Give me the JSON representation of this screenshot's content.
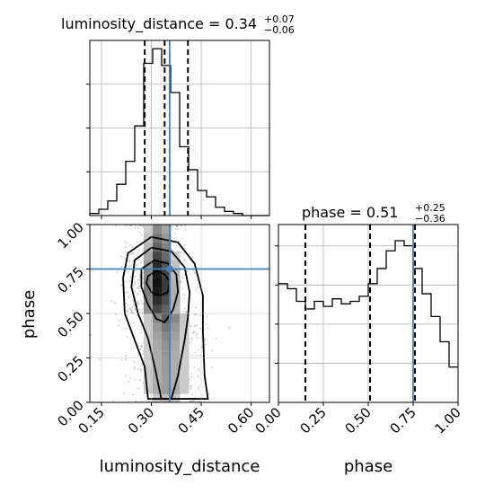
{
  "chart_data": {
    "type": "corner",
    "parameters": [
      "luminosity_distance",
      "phase"
    ],
    "truths": {
      "luminosity_distance": 0.355,
      "phase": 0.75
    },
    "titles": [
      {
        "param": "luminosity_distance",
        "base": "luminosity_distance = 0.34",
        "plus": "+0.07",
        "minus": "−0.06"
      },
      {
        "param": "phase",
        "base": "phase = 0.51",
        "plus": "+0.25",
        "minus": "−0.36"
      }
    ],
    "axes": {
      "luminosity_distance": {
        "label": "luminosity_distance",
        "range": [
          0.115,
          0.655
        ],
        "ticks": [
          0.15,
          0.3,
          0.45,
          0.6
        ],
        "tick_labels": [
          "0.15",
          "0.30",
          "0.45",
          "0.60"
        ]
      },
      "phase": {
        "label": "phase",
        "range": [
          0.0,
          1.0
        ],
        "ticks": [
          0.0,
          0.25,
          0.5,
          0.75,
          1.0
        ],
        "tick_labels": [
          "0.00",
          "0.25",
          "0.50",
          "0.75",
          "1.00"
        ]
      }
    },
    "hist_luminosity_distance": {
      "quantiles": [
        0.28,
        0.34,
        0.41
      ],
      "edges": [
        0.115,
        0.142,
        0.169,
        0.196,
        0.223,
        0.25,
        0.277,
        0.304,
        0.331,
        0.358,
        0.385,
        0.412,
        0.439,
        0.466,
        0.493,
        0.52,
        0.547,
        0.574,
        0.601,
        0.628,
        0.655
      ],
      "counts": [
        1,
        3,
        7,
        15,
        26,
        43,
        73,
        80,
        72,
        59,
        33,
        22,
        12,
        9,
        4,
        2,
        1,
        0,
        0,
        0
      ]
    },
    "hist_phase": {
      "quantiles": [
        0.15,
        0.51,
        0.76
      ],
      "edges": [
        0.0,
        0.05,
        0.1,
        0.15,
        0.2,
        0.25,
        0.3,
        0.35,
        0.4,
        0.45,
        0.5,
        0.55,
        0.6,
        0.65,
        0.7,
        0.75,
        0.8,
        0.85,
        0.9,
        0.95,
        1.0
      ],
      "counts": [
        47,
        45,
        40,
        37,
        40,
        38,
        41,
        39,
        40,
        42,
        47,
        53,
        60,
        64,
        62,
        53,
        43,
        34,
        24,
        14
      ]
    },
    "density_2d": {
      "x_range": [
        0.115,
        0.655
      ],
      "y_range": [
        0.0,
        1.0
      ],
      "centre": {
        "luminosity_distance": 0.34,
        "phase": 0.68
      },
      "contours": [
        [
          [
            0.29,
            0.71
          ],
          [
            0.315,
            0.74
          ],
          [
            0.34,
            0.72
          ],
          [
            0.355,
            0.68
          ],
          [
            0.35,
            0.62
          ],
          [
            0.325,
            0.6
          ],
          [
            0.3,
            0.62
          ],
          [
            0.285,
            0.67
          ],
          [
            0.29,
            0.71
          ]
        ],
        [
          [
            0.27,
            0.75
          ],
          [
            0.31,
            0.8
          ],
          [
            0.35,
            0.78
          ],
          [
            0.375,
            0.72
          ],
          [
            0.38,
            0.62
          ],
          [
            0.365,
            0.52
          ],
          [
            0.34,
            0.45
          ],
          [
            0.315,
            0.47
          ],
          [
            0.29,
            0.55
          ],
          [
            0.27,
            0.65
          ],
          [
            0.27,
            0.75
          ]
        ],
        [
          [
            0.25,
            0.8
          ],
          [
            0.3,
            0.87
          ],
          [
            0.36,
            0.85
          ],
          [
            0.4,
            0.76
          ],
          [
            0.415,
            0.62
          ],
          [
            0.41,
            0.48
          ],
          [
            0.4,
            0.35
          ],
          [
            0.38,
            0.15
          ],
          [
            0.36,
            0.02
          ],
          [
            0.33,
            0.02
          ],
          [
            0.31,
            0.2
          ],
          [
            0.29,
            0.36
          ],
          [
            0.26,
            0.5
          ],
          [
            0.24,
            0.65
          ],
          [
            0.25,
            0.8
          ]
        ],
        [
          [
            0.23,
            0.84
          ],
          [
            0.3,
            0.93
          ],
          [
            0.38,
            0.9
          ],
          [
            0.43,
            0.78
          ],
          [
            0.455,
            0.6
          ],
          [
            0.455,
            0.4
          ],
          [
            0.46,
            0.15
          ],
          [
            0.47,
            0.02
          ],
          [
            0.29,
            0.02
          ],
          [
            0.28,
            0.2
          ],
          [
            0.25,
            0.35
          ],
          [
            0.22,
            0.5
          ],
          [
            0.215,
            0.7
          ],
          [
            0.23,
            0.84
          ]
        ]
      ]
    }
  }
}
